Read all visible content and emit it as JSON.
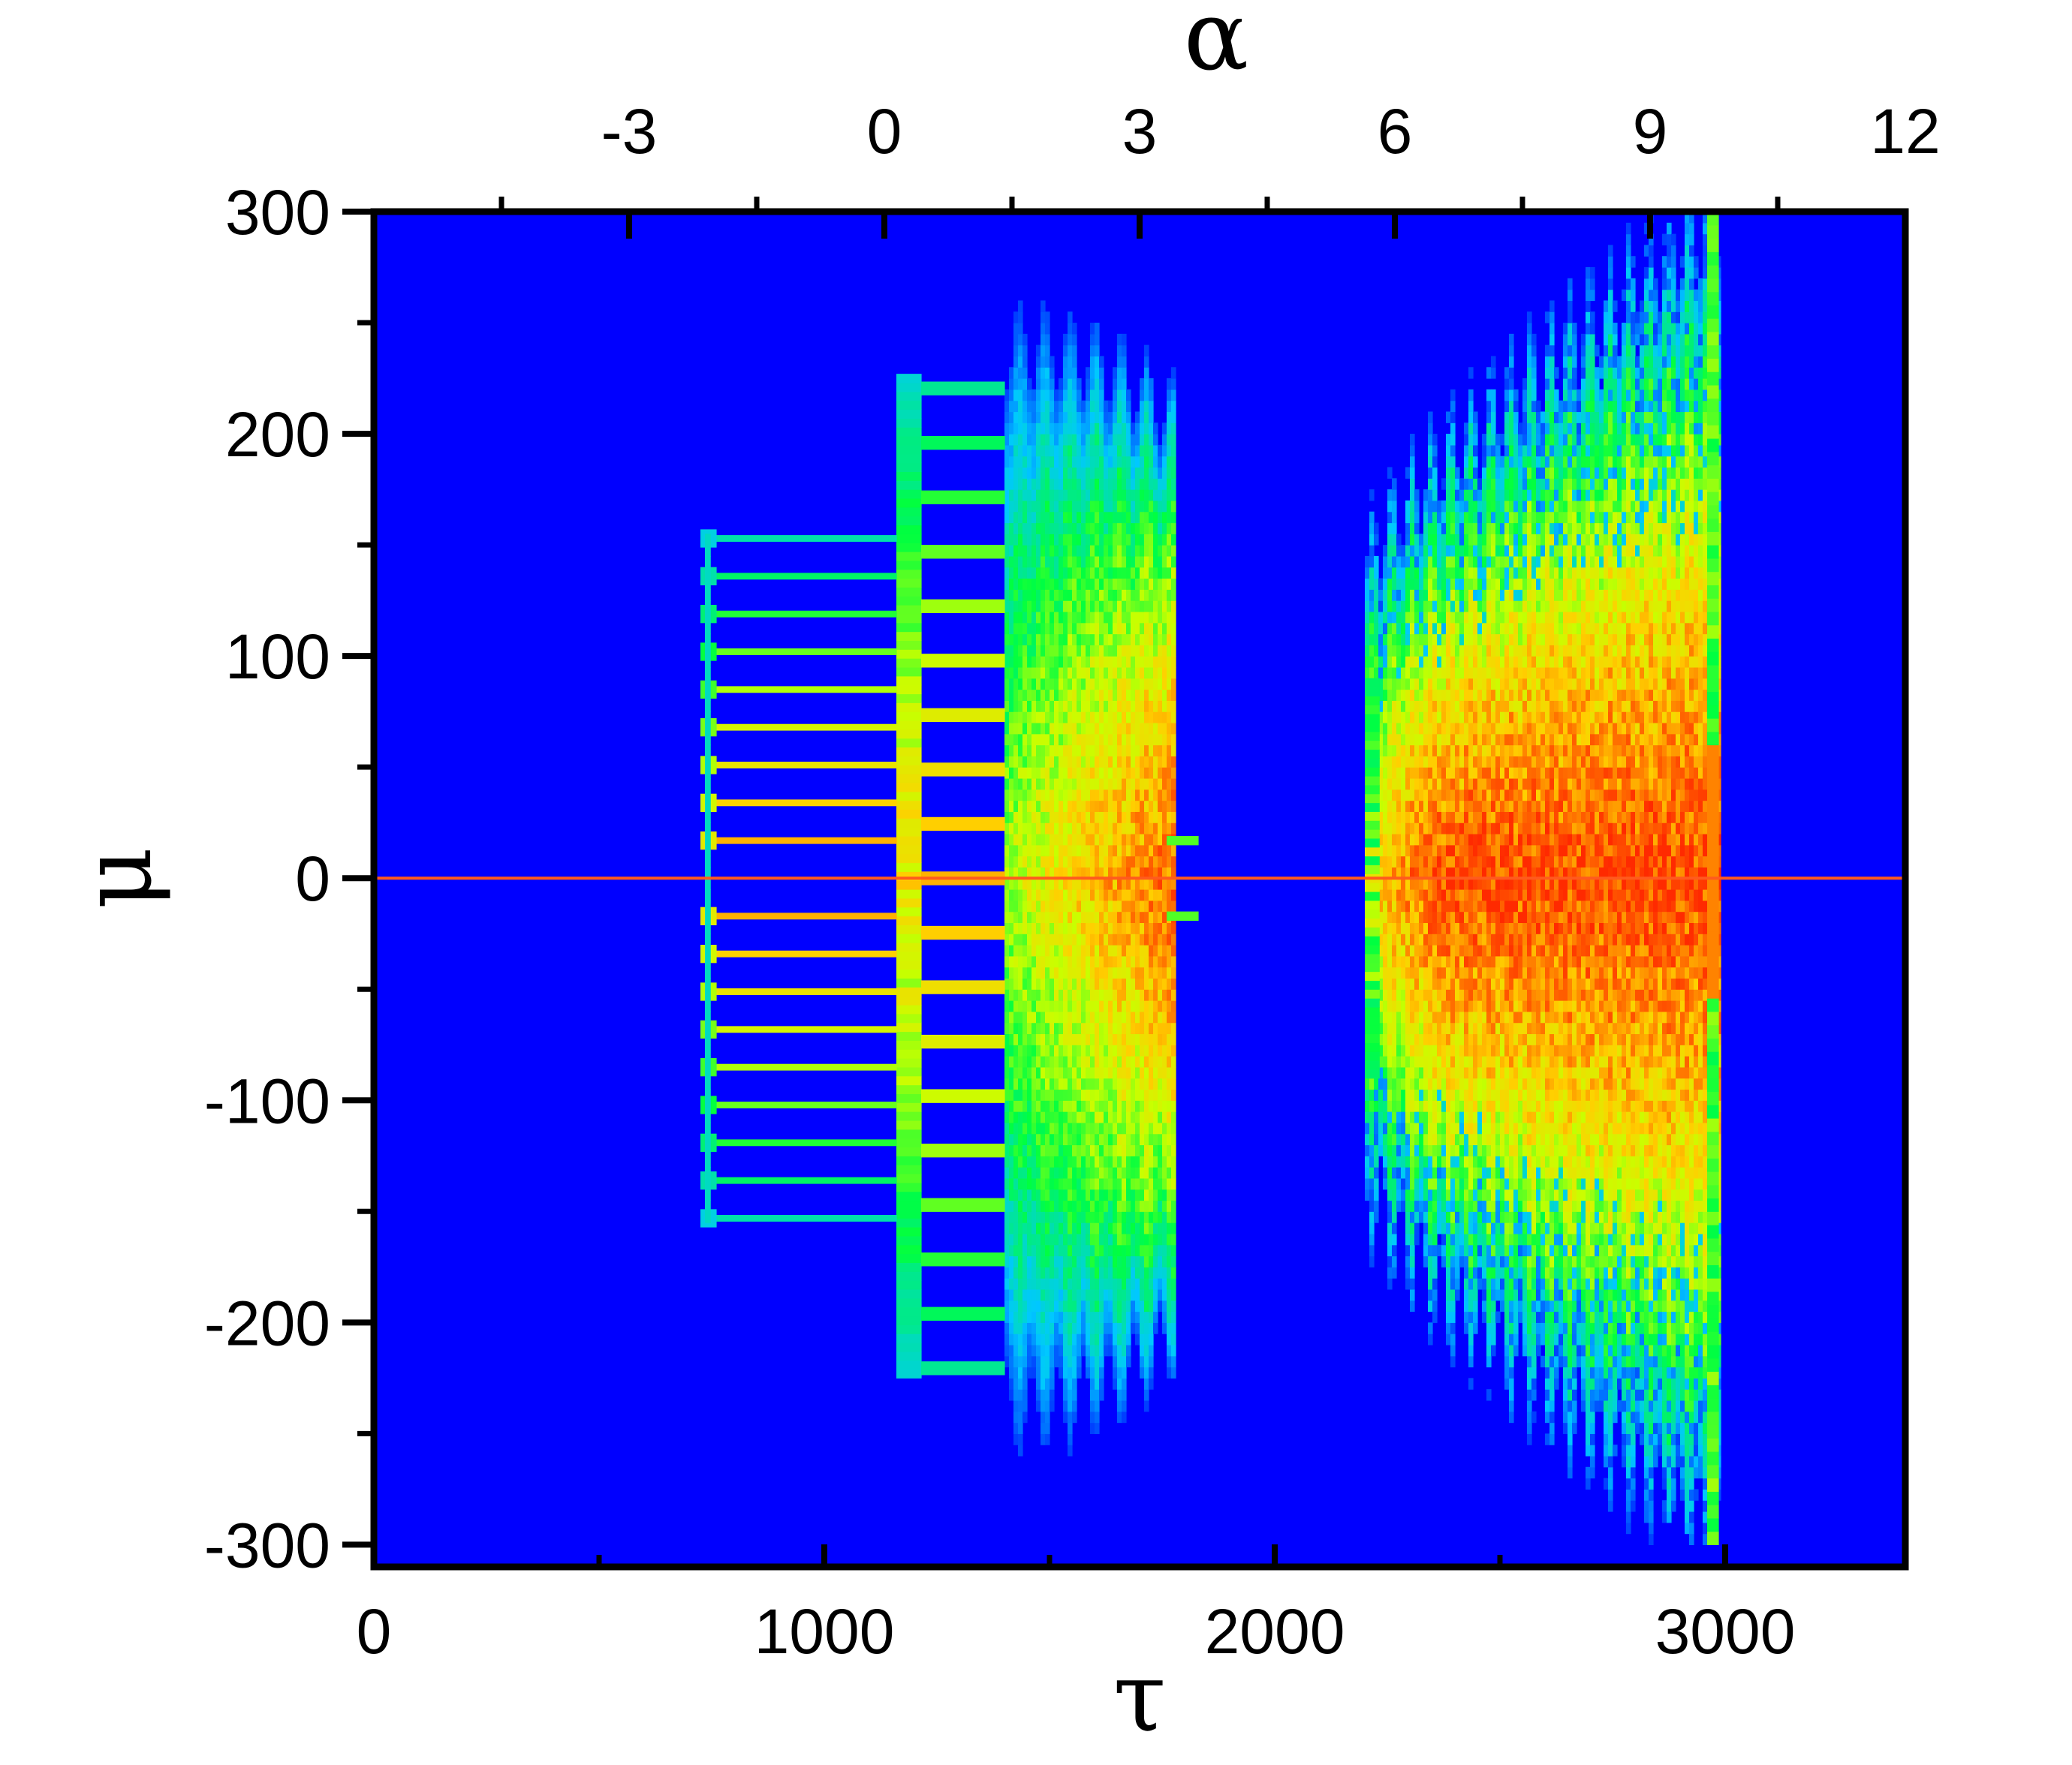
{
  "chart_data": {
    "type": "heatmap",
    "title": "",
    "xlabel": "τ",
    "ylabel": "μ",
    "x2label": "α",
    "xlim": [
      0,
      3400
    ],
    "ylim": [
      -310,
      300
    ],
    "x2lim": [
      -6,
      12
    ],
    "x_ticks": [
      0,
      1000,
      2000,
      3000
    ],
    "x_tick_labels": [
      "0",
      "1000",
      "2000",
      "3000"
    ],
    "y_ticks": [
      -300,
      -200,
      -100,
      0,
      100,
      200,
      300
    ],
    "y_tick_labels": [
      "-300",
      "-200",
      "-100",
      "0",
      "100",
      "200",
      "300"
    ],
    "x2_ticks": [
      -3,
      0,
      3,
      6,
      9,
      12
    ],
    "x2_tick_labels": [
      "-3",
      "0",
      "3",
      "6",
      "9",
      "12"
    ],
    "colormap": [
      "#0000ff",
      "#00c8ff",
      "#00ff40",
      "#c8ff00",
      "#ffd000",
      "#ff7000",
      "#ff2a00"
    ],
    "background_color": "#0000ff",
    "zero_line_color": "#ff5a1f",
    "grid": false,
    "legend": "none",
    "regions": [
      {
        "name": "comb",
        "x": [
          735,
          1160
        ],
        "y_extent": 155,
        "line_levels": [
          17,
          34,
          51,
          68,
          85,
          102,
          119,
          136,
          153
        ]
      },
      {
        "name": "loops",
        "x": [
          1160,
          1400
        ],
        "y_extent": 225,
        "cell_pitch": 24.5
      },
      {
        "name": "cloud-left",
        "x": [
          1400,
          1780
        ],
        "y_extent": 270,
        "peak": 0.9
      },
      {
        "name": "cloud-right",
        "x": [
          2200,
          2985
        ],
        "y_extent": 300,
        "peak": 0.95,
        "edge_line_x": 2985
      }
    ]
  }
}
